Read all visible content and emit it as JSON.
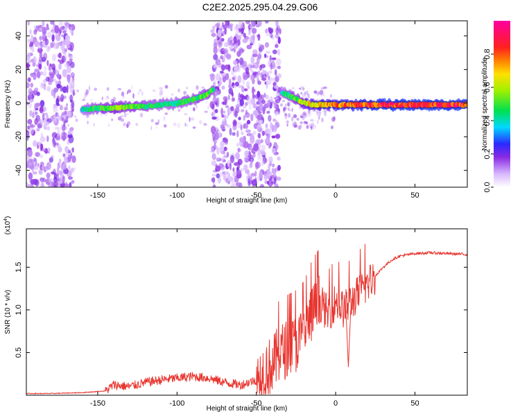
{
  "title": "C2E2.2025.295.04.29.G06",
  "chart_data": [
    {
      "type": "heatmap",
      "name": "spectrogram",
      "xlabel": "Height of straight line (km)",
      "ylabel": "Frequency (Hz)",
      "xlim": [
        -195,
        83
      ],
      "ylim": [
        -50,
        49
      ],
      "xticks": [
        "-150",
        "-100",
        "-50",
        "0",
        "50"
      ],
      "xtick_values": [
        -150,
        -100,
        -50,
        0,
        50
      ],
      "yticks": [
        "-40",
        "-20",
        "0",
        "20",
        "40"
      ],
      "ytick_values": [
        -40,
        -20,
        0,
        20,
        40
      ],
      "colorbar": {
        "label": "Normalized spectral amplitude",
        "ticks": [
          "0.0",
          "0.2",
          "0.4",
          "0.6",
          "0.8"
        ],
        "tick_values": [
          0.0,
          0.2,
          0.4,
          0.6,
          0.8
        ],
        "range": [
          0,
          1
        ]
      },
      "signal_track": {
        "x": [
          -160,
          -150,
          -140,
          -130,
          -120,
          -110,
          -100,
          -90,
          -82,
          -78,
          -33,
          -28,
          -22,
          -15,
          0,
          30,
          83
        ],
        "frequency": [
          -4,
          -3,
          -3,
          -2,
          -2,
          -1,
          0,
          2,
          5,
          8,
          6,
          4,
          1,
          -1,
          -1,
          -1,
          -1
        ],
        "amplitude": [
          0.4,
          0.5,
          0.6,
          0.55,
          0.5,
          0.45,
          0.45,
          0.5,
          0.55,
          0.5,
          0.45,
          0.5,
          0.6,
          0.7,
          0.8,
          0.9,
          0.9
        ]
      },
      "noise_regions": [
        [
          -195,
          -165
        ],
        [
          -78,
          -35
        ]
      ]
    },
    {
      "type": "line",
      "name": "snr",
      "xlabel": "Height of straight line (km)",
      "ylabel": "SNR (10 * v/v)",
      "scale_label": "(x10",
      "scale_exponent": "4",
      "xlim": [
        -195,
        83
      ],
      "ylim": [
        0,
        1.95
      ],
      "xticks": [
        "-150",
        "-100",
        "-50",
        "0",
        "50"
      ],
      "xtick_values": [
        -150,
        -100,
        -50,
        0,
        50
      ],
      "yticks": [
        "0.5",
        "1.0",
        "1.5"
      ],
      "ytick_values": [
        0.5,
        1.0,
        1.5
      ],
      "series": [
        {
          "name": "SNR",
          "color": "#e8352f",
          "x": [
            -195,
            -180,
            -160,
            -145,
            -140,
            -130,
            -120,
            -110,
            -100,
            -90,
            -80,
            -70,
            -60,
            -50,
            -45,
            -40,
            -35,
            -30,
            -25,
            -20,
            -15,
            -10,
            -5,
            0,
            5,
            10,
            15,
            20,
            25,
            30,
            35,
            40,
            50,
            60,
            70,
            83
          ],
          "y": [
            0.02,
            0.02,
            0.03,
            0.05,
            0.12,
            0.1,
            0.15,
            0.18,
            0.2,
            0.22,
            0.2,
            0.15,
            0.12,
            0.18,
            0.3,
            0.35,
            0.5,
            0.55,
            0.6,
            0.7,
            0.95,
            1.1,
            0.95,
            1.1,
            1.0,
            1.1,
            1.2,
            1.3,
            1.4,
            1.5,
            1.58,
            1.63,
            1.66,
            1.67,
            1.66,
            1.65
          ]
        }
      ]
    }
  ],
  "colors": {
    "line": "#e8352f",
    "noise": "#8a2be2",
    "background": "#ffffff",
    "axis": "#000000"
  }
}
